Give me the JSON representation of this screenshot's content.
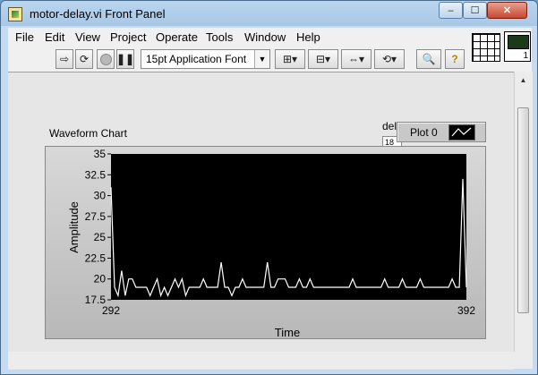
{
  "window": {
    "title": "motor-delay.vi Front Panel",
    "controls": {
      "minimize": "–",
      "maximize": "☐",
      "close": "✕"
    }
  },
  "menu": [
    "File",
    "Edit",
    "View",
    "Project",
    "Operate",
    "Tools",
    "Window",
    "Help"
  ],
  "toolbar": {
    "font": "15pt Application Font"
  },
  "vi_icon": {
    "number": "1"
  },
  "front_panel": {
    "chart_caption": "Waveform Chart",
    "delay_label": "del",
    "delay_value": "18",
    "legend_plot_name": "Plot 0"
  },
  "colors": {
    "plot_background": "#000000",
    "plot_line": "#ffffff",
    "panel": "#e6e6e6"
  },
  "chart_data": {
    "type": "line",
    "title": "",
    "xlabel": "Time",
    "ylabel": "Amplitude",
    "xlim": [
      292,
      392
    ],
    "ylim": [
      17.5,
      35
    ],
    "x_ticks": [
      "292",
      "392"
    ],
    "y_ticks": [
      "17.5",
      "20",
      "22.5",
      "25",
      "27.5",
      "30",
      "32.5",
      "35"
    ],
    "grid": false,
    "legend": "top-right",
    "series": [
      {
        "name": "Plot 0",
        "x0": 292,
        "dx": 1,
        "values": [
          31,
          19,
          18,
          21,
          18,
          20,
          20,
          19,
          19,
          19,
          19,
          18,
          19,
          20,
          18,
          19,
          18,
          19,
          20,
          19,
          20,
          18,
          19,
          19,
          19,
          19,
          20,
          19,
          19,
          19,
          19,
          22,
          19,
          19,
          18,
          19,
          19,
          20,
          19,
          19,
          19,
          19,
          19,
          19,
          22,
          19,
          19,
          20,
          20,
          20,
          19,
          19,
          19,
          20,
          19,
          19,
          20,
          19,
          19,
          19,
          19,
          19,
          19,
          19,
          19,
          19,
          19,
          19,
          20,
          19,
          19,
          19,
          19,
          19,
          19,
          19,
          19,
          20,
          19,
          19,
          19,
          19,
          20,
          19,
          19,
          19,
          19,
          20,
          19,
          19,
          19,
          19,
          19,
          19,
          19,
          19,
          20,
          19,
          19,
          32,
          19,
          19
        ]
      }
    ]
  }
}
